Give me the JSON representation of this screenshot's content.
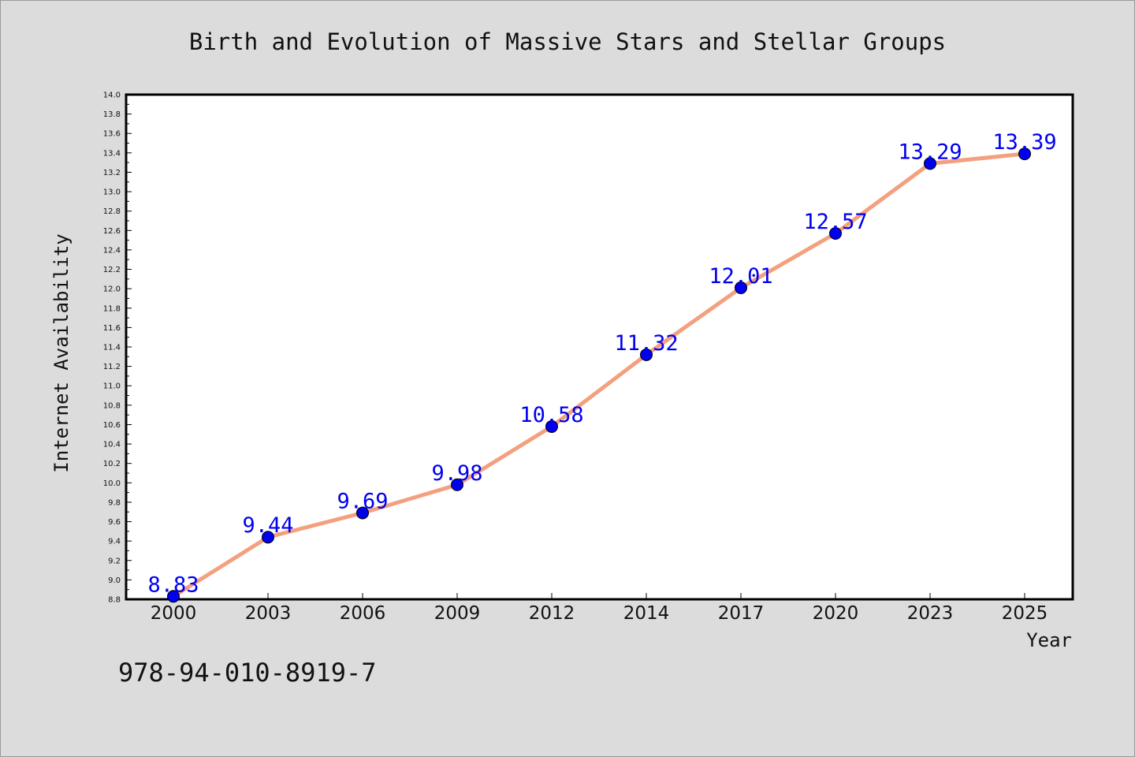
{
  "chart_data": {
    "type": "line",
    "title": "Birth and Evolution of Massive Stars and Stellar Groups",
    "xlabel": "Year",
    "ylabel": "Internet Availability",
    "categories": [
      "2000",
      "2003",
      "2006",
      "2009",
      "2012",
      "2014",
      "2017",
      "2020",
      "2023",
      "2025"
    ],
    "values": [
      8.83,
      9.44,
      9.69,
      9.98,
      10.58,
      11.32,
      12.01,
      12.57,
      13.29,
      13.39
    ],
    "data_labels": [
      "8.83",
      "9.44",
      "9.69",
      "9.98",
      "10.58",
      "11.32",
      "12.01",
      "12.57",
      "13.29",
      "13.39"
    ],
    "ylim": [
      8.8,
      14.0
    ],
    "yticks": [
      "8.8",
      "9.0",
      "9.2",
      "9.4",
      "9.6",
      "9.8",
      "10.0",
      "10.2",
      "10.4",
      "10.6",
      "10.8",
      "11.0",
      "11.2",
      "11.4",
      "11.6",
      "11.8",
      "12.0",
      "12.2",
      "12.4",
      "12.6",
      "12.8",
      "13.0",
      "13.2",
      "13.4",
      "13.6",
      "13.8",
      "14.0"
    ],
    "grid": false,
    "line_color": "#f4a07f",
    "marker_color": "#0000ee",
    "label_color": "#0000ee"
  },
  "footer": {
    "isbn": "978-94-010-8919-7"
  }
}
